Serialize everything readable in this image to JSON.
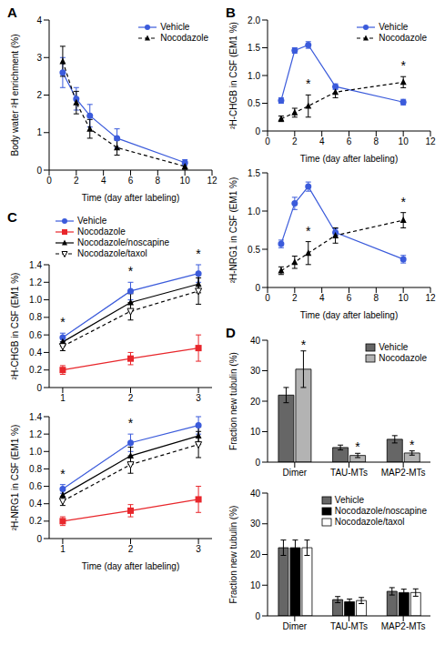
{
  "chart_data": [
    {
      "panel_label": "A",
      "type": "line",
      "x_label": "Time (day after labeling)",
      "y_label": "Body water ²H enrichment (%)",
      "xlim": [
        0,
        12
      ],
      "xticks": [
        0,
        2,
        4,
        6,
        8,
        10,
        12
      ],
      "ylim": [
        0,
        4
      ],
      "yticks": [
        0,
        1,
        2,
        3,
        4
      ],
      "legend": "upper right",
      "x": [
        1,
        2,
        3,
        5,
        10
      ],
      "series": [
        {
          "name": "Vehicle",
          "color": "#3b5bdb",
          "marker": "circle",
          "line_style": "solid",
          "values": [
            2.6,
            1.9,
            1.45,
            0.85,
            0.2
          ],
          "errors": [
            0.4,
            0.3,
            0.3,
            0.25,
            0.08
          ]
        },
        {
          "name": "Nocodazole",
          "color": "#000000",
          "marker": "triangle",
          "line_style": "dashed",
          "values": [
            2.9,
            1.8,
            1.1,
            0.6,
            0.1
          ],
          "errors": [
            0.4,
            0.3,
            0.25,
            0.2,
            0.08
          ]
        }
      ]
    },
    {
      "panel_label": "B",
      "type": "line",
      "x_label": "Time (day after labeling)",
      "y_label": "²H-CHGB in CSF (EM1 %)",
      "xlim": [
        0,
        12
      ],
      "xticks": [
        0,
        2,
        4,
        6,
        8,
        10,
        12
      ],
      "ylim": [
        0,
        2
      ],
      "yticks": [
        0,
        0.5,
        {
          "value": 1,
          "label": "1.0"
        },
        1.5,
        {
          "value": 2,
          "label": "2.0"
        }
      ],
      "legend": "upper right",
      "x": [
        1,
        2,
        3,
        5,
        10
      ],
      "series": [
        {
          "name": "Vehicle",
          "color": "#3b5bdb",
          "marker": "circle",
          "line_style": "solid",
          "values": [
            0.55,
            1.45,
            1.55,
            0.8,
            0.52
          ],
          "errors": [
            0.05,
            0.05,
            0.06,
            0.05,
            0.05
          ]
        },
        {
          "name": "Nocodazole",
          "color": "#000000",
          "marker": "triangle",
          "line_style": "dashed",
          "values": [
            0.22,
            0.33,
            0.45,
            0.7,
            0.88
          ],
          "errors": [
            0.05,
            0.08,
            0.2,
            0.1,
            0.1
          ]
        }
      ],
      "annotations": [
        {
          "x": 3,
          "series": "Nocodazole",
          "text": "*"
        },
        {
          "x": 10,
          "series": "Nocodazole",
          "text": "*"
        }
      ]
    },
    {
      "type": "line",
      "x_label": "Time (day after labeling)",
      "y_label": "²H-NRG1 in CSF (EM1 %)",
      "xlim": [
        0,
        12
      ],
      "xticks": [
        0,
        2,
        4,
        6,
        8,
        10,
        12
      ],
      "ylim": [
        0,
        1.5
      ],
      "yticks": [
        0,
        0.5,
        {
          "value": 1,
          "label": "1.0"
        },
        1.5
      ],
      "x": [
        1,
        2,
        3,
        5,
        10
      ],
      "series": [
        {
          "name": "Vehicle",
          "color": "#3b5bdb",
          "marker": "circle",
          "line_style": "solid",
          "values": [
            0.57,
            1.1,
            1.32,
            0.72,
            0.37
          ],
          "errors": [
            0.05,
            0.08,
            0.06,
            0.05,
            0.05
          ]
        },
        {
          "name": "Nocodazole",
          "color": "#000000",
          "marker": "triangle",
          "line_style": "dashed",
          "values": [
            0.22,
            0.33,
            0.45,
            0.68,
            0.88
          ],
          "errors": [
            0.05,
            0.08,
            0.15,
            0.1,
            0.1
          ]
        }
      ],
      "annotations": [
        {
          "x": 3,
          "series": "Nocodazole",
          "text": "*"
        },
        {
          "x": 10,
          "series": "Nocodazole",
          "text": "*"
        }
      ]
    },
    {
      "panel_label": "C",
      "type": "line",
      "y_label": "²H-CHGB in CSF (EM1 %)",
      "xlim": [
        0.8,
        3.2
      ],
      "xticks": [
        1,
        2,
        3
      ],
      "ylim": [
        0,
        1.4
      ],
      "yticks": [
        0,
        0.2,
        0.4,
        0.6,
        0.8,
        {
          "value": 1,
          "label": "1.0"
        },
        1.2,
        1.4
      ],
      "legend": "upper left",
      "x": [
        1,
        2,
        3
      ],
      "series": [
        {
          "name": "Vehicle",
          "color": "#3b5bdb",
          "marker": "circle",
          "line_style": "solid",
          "values": [
            0.57,
            1.1,
            1.3
          ],
          "errors": [
            0.05,
            0.1,
            0.1
          ]
        },
        {
          "name": "Nocodazole",
          "color": "#e8262b",
          "marker": "square",
          "line_style": "solid",
          "values": [
            0.2,
            0.33,
            0.45
          ],
          "errors": [
            0.05,
            0.07,
            0.15
          ]
        },
        {
          "name": "Nocodazole/noscapine",
          "color": "#000000",
          "marker": "triangle",
          "line_style": "solid",
          "values": [
            0.52,
            0.97,
            1.18
          ],
          "errors": [
            0.05,
            0.1,
            0.1
          ]
        },
        {
          "name": "Nocodazole/taxol",
          "color": "#000000",
          "marker": "open_triangle_down",
          "line_style": "dashed",
          "values": [
            0.47,
            0.87,
            1.1
          ],
          "errors": [
            0.05,
            0.1,
            0.15
          ]
        }
      ],
      "annotations": [
        {
          "x": 1,
          "series": "Vehicle",
          "text": "*"
        },
        {
          "x": 2,
          "series": "Vehicle",
          "text": "*"
        },
        {
          "x": 3,
          "series": "Vehicle",
          "text": "*"
        }
      ]
    },
    {
      "type": "line",
      "x_label": "Time (day after labeling)",
      "y_label": "²H-NRG1 in CSF (EM1 %)",
      "xlim": [
        0.8,
        3.2
      ],
      "xticks": [
        1,
        2,
        3
      ],
      "ylim": [
        0,
        1.4
      ],
      "yticks": [
        0,
        0.2,
        0.4,
        0.6,
        0.8,
        {
          "value": 1,
          "label": "1.0"
        },
        1.2,
        1.4
      ],
      "x": [
        1,
        2,
        3
      ],
      "series": [
        {
          "name": "Vehicle",
          "color": "#3b5bdb",
          "marker": "circle",
          "line_style": "solid",
          "values": [
            0.57,
            1.1,
            1.3
          ],
          "errors": [
            0.05,
            0.1,
            0.1
          ]
        },
        {
          "name": "Nocodazole",
          "color": "#e8262b",
          "marker": "square",
          "line_style": "solid",
          "values": [
            0.2,
            0.32,
            0.45
          ],
          "errors": [
            0.05,
            0.07,
            0.15
          ]
        },
        {
          "name": "Nocodazole/noscapine",
          "color": "#000000",
          "marker": "triangle",
          "line_style": "solid",
          "values": [
            0.5,
            0.95,
            1.18
          ],
          "errors": [
            0.05,
            0.1,
            0.1
          ]
        },
        {
          "name": "Nocodazole/taxol",
          "color": "#000000",
          "marker": "open_triangle_down",
          "line_style": "dashed",
          "values": [
            0.43,
            0.85,
            1.08
          ],
          "errors": [
            0.05,
            0.1,
            0.15
          ]
        }
      ],
      "annotations": [
        {
          "x": 1,
          "series": "Vehicle",
          "text": "*"
        },
        {
          "x": 2,
          "series": "Vehicle",
          "text": "*"
        },
        {
          "x": 3,
          "series": "Vehicle",
          "text": "*"
        }
      ]
    },
    {
      "panel_label": "D",
      "type": "bar",
      "y_label": "Fraction new tubulin (%)",
      "categories": [
        "Dimer",
        "TAU-MTs",
        "MAP2-MTs"
      ],
      "ylim": [
        0,
        40
      ],
      "yticks": [
        0,
        10,
        20,
        30,
        40
      ],
      "legend": "upper right",
      "series": [
        {
          "name": "Vehicle",
          "color": "#666666",
          "values": [
            22,
            4.8,
            7.5
          ],
          "errors": [
            2.5,
            0.8,
            1.2
          ]
        },
        {
          "name": "Nocodazole",
          "color": "#b3b3b3",
          "values": [
            30.5,
            2.2,
            3
          ],
          "errors": [
            6,
            0.7,
            0.7
          ]
        }
      ],
      "annotations": [
        {
          "category": "Dimer",
          "series": "Nocodazole",
          "text": "*"
        },
        {
          "category": "TAU-MTs",
          "series": "Nocodazole",
          "text": "*"
        },
        {
          "category": "MAP2-MTs",
          "series": "Nocodazole",
          "text": "*"
        }
      ]
    },
    {
      "type": "bar",
      "y_label": "Fraction new tubulin (%)",
      "categories": [
        "Dimer",
        "TAU-MTs",
        "MAP2-MTs"
      ],
      "ylim": [
        0,
        40
      ],
      "yticks": [
        0,
        10,
        20,
        30,
        40
      ],
      "legend": "upper right",
      "series": [
        {
          "name": "Vehicle",
          "color": "#666666",
          "values": [
            22.2,
            5.3,
            8
          ],
          "errors": [
            2.5,
            1,
            1.2
          ]
        },
        {
          "name": "Nocodazole/noscapine",
          "color": "#000000",
          "values": [
            22.2,
            4.6,
            7.6
          ],
          "errors": [
            2.5,
            0.9,
            1.1
          ]
        },
        {
          "name": "Nocodazole/taxol",
          "color": "#ffffff",
          "values": [
            22.2,
            5,
            7.6
          ],
          "errors": [
            2.5,
            1,
            1.2
          ]
        }
      ]
    }
  ]
}
